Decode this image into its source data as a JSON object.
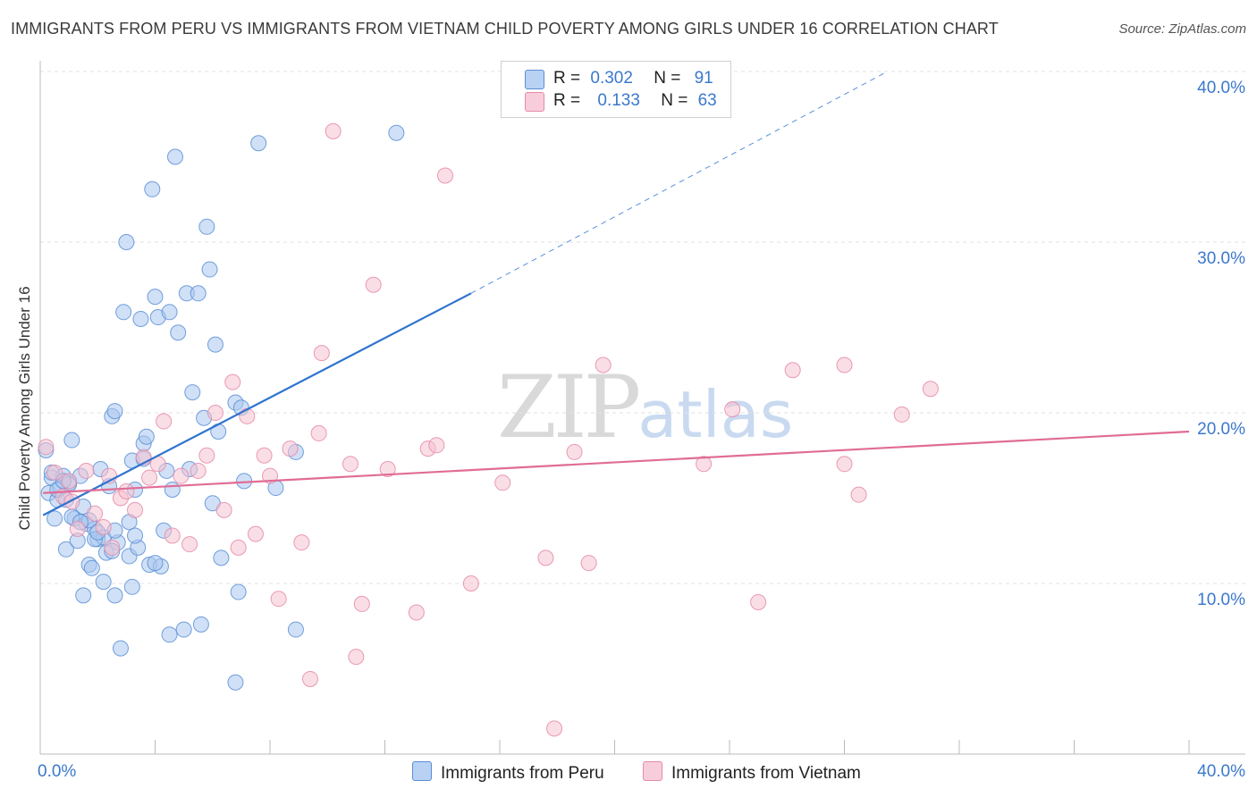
{
  "title": "IMMIGRANTS FROM PERU VS IMMIGRANTS FROM VIETNAM CHILD POVERTY AMONG GIRLS UNDER 16 CORRELATION CHART",
  "source": "Source: ZipAtlas.com",
  "watermark": {
    "zip": "ZIP",
    "atlas": "atlas"
  },
  "legend": {
    "peru": {
      "r_label": "R =",
      "r_value": "0.302",
      "n_label": "N =",
      "n_value": "91"
    },
    "vietnam": {
      "r_label": "R =",
      "r_value": "0.133",
      "n_label": "N =",
      "n_value": "63"
    }
  },
  "bottom_legend": {
    "peru": "Immigrants from Peru",
    "vietnam": "Immigrants from Vietnam"
  },
  "colors": {
    "peru_fill": "#a9c6ef",
    "peru_stroke": "#5b8fd6",
    "peru_line": "#2f74cf",
    "vietnam_fill": "#f6c2d2",
    "vietnam_stroke": "#e58aa8",
    "vietnam_line": "#e06c95",
    "axis_text": "#3a78cc",
    "grid": "#e2e2e2"
  },
  "chart_data": {
    "type": "scatter",
    "title": "IMMIGRANTS FROM PERU VS IMMIGRANTS FROM VIETNAM CHILD POVERTY AMONG GIRLS UNDER 16 CORRELATION CHART",
    "xlabel": "",
    "ylabel": "Child Poverty Among Girls Under 16",
    "xlim": [
      0,
      40
    ],
    "ylim": [
      0,
      40
    ],
    "x_tick_labels": [
      {
        "value": 0,
        "label": "0.0%"
      },
      {
        "value": 40,
        "label": "40.0%"
      }
    ],
    "y_tick_labels": [
      {
        "value": 10,
        "label": "10.0%"
      },
      {
        "value": 20,
        "label": "20.0%"
      },
      {
        "value": 30,
        "label": "30.0%"
      },
      {
        "value": 40,
        "label": "40.0%"
      }
    ],
    "grid": true,
    "series": [
      {
        "name": "Immigrants from Peru",
        "color": "#5b8fd6",
        "r": 0.302,
        "n": 91,
        "trend": {
          "x0": 0.1,
          "y0": 14.0,
          "x1": 15.0,
          "y1": 27.0,
          "dash_to_x": 29.5,
          "dash_to_y": 40.0
        },
        "points": [
          [
            0.2,
            17.8
          ],
          [
            0.3,
            15.3
          ],
          [
            0.4,
            16.2
          ],
          [
            0.5,
            13.8
          ],
          [
            0.6,
            14.9
          ],
          [
            0.7,
            15.6
          ],
          [
            0.8,
            16.3
          ],
          [
            0.9,
            12.0
          ],
          [
            1.0,
            15.9
          ],
          [
            1.1,
            18.4
          ],
          [
            1.2,
            13.8
          ],
          [
            1.3,
            12.5
          ],
          [
            1.4,
            16.3
          ],
          [
            1.5,
            14.5
          ],
          [
            1.6,
            13.5
          ],
          [
            1.7,
            11.1
          ],
          [
            1.8,
            10.9
          ],
          [
            1.9,
            13.2
          ],
          [
            2.0,
            12.6
          ],
          [
            2.1,
            16.7
          ],
          [
            2.2,
            10.1
          ],
          [
            2.3,
            11.8
          ],
          [
            2.4,
            15.7
          ],
          [
            2.5,
            19.8
          ],
          [
            2.6,
            20.1
          ],
          [
            2.7,
            12.4
          ],
          [
            2.8,
            6.2
          ],
          [
            2.9,
            25.9
          ],
          [
            3.0,
            30.0
          ],
          [
            3.1,
            11.6
          ],
          [
            3.2,
            9.8
          ],
          [
            3.3,
            15.5
          ],
          [
            3.4,
            12.1
          ],
          [
            3.5,
            25.5
          ],
          [
            3.6,
            18.2
          ],
          [
            3.7,
            18.6
          ],
          [
            3.8,
            11.1
          ],
          [
            3.9,
            33.1
          ],
          [
            4.0,
            26.8
          ],
          [
            4.1,
            25.6
          ],
          [
            4.2,
            11.0
          ],
          [
            4.3,
            13.1
          ],
          [
            4.4,
            16.6
          ],
          [
            4.5,
            25.9
          ],
          [
            4.6,
            15.5
          ],
          [
            4.7,
            35.0
          ],
          [
            4.8,
            24.7
          ],
          [
            5.0,
            7.3
          ],
          [
            5.1,
            27.0
          ],
          [
            5.2,
            16.7
          ],
          [
            5.3,
            21.2
          ],
          [
            5.5,
            27.0
          ],
          [
            5.6,
            7.6
          ],
          [
            5.7,
            19.7
          ],
          [
            5.8,
            30.9
          ],
          [
            5.9,
            28.4
          ],
          [
            6.0,
            14.7
          ],
          [
            6.1,
            24.0
          ],
          [
            6.2,
            18.9
          ],
          [
            6.3,
            11.5
          ],
          [
            6.8,
            20.6
          ],
          [
            6.9,
            9.5
          ],
          [
            7.0,
            20.3
          ],
          [
            7.1,
            16.0
          ],
          [
            7.6,
            35.8
          ],
          [
            8.2,
            15.6
          ],
          [
            8.9,
            17.7
          ],
          [
            8.9,
            7.3
          ],
          [
            12.4,
            36.4
          ],
          [
            6.8,
            4.2
          ],
          [
            4.5,
            7.0
          ],
          [
            1.5,
            9.3
          ],
          [
            1.0,
            15.8
          ],
          [
            0.6,
            15.5
          ],
          [
            1.1,
            13.9
          ],
          [
            2.6,
            9.3
          ],
          [
            3.2,
            17.2
          ],
          [
            4.0,
            11.2
          ],
          [
            2.5,
            11.9
          ],
          [
            3.1,
            13.6
          ],
          [
            2.2,
            12.7
          ],
          [
            0.9,
            14.9
          ],
          [
            1.9,
            12.6
          ],
          [
            3.6,
            17.3
          ],
          [
            0.4,
            16.5
          ],
          [
            1.7,
            13.7
          ],
          [
            2.6,
            13.1
          ],
          [
            1.4,
            13.6
          ],
          [
            0.8,
            16.0
          ],
          [
            2.0,
            13.0
          ],
          [
            3.3,
            12.8
          ]
        ]
      },
      {
        "name": "Immigrants from Vietnam",
        "color": "#e58aa8",
        "r": 0.133,
        "n": 63,
        "trend": {
          "x0": 0.1,
          "y0": 15.3,
          "x1": 40.0,
          "y1": 18.9
        },
        "points": [
          [
            0.2,
            18.0
          ],
          [
            0.5,
            16.5
          ],
          [
            0.8,
            15.1
          ],
          [
            1.0,
            16.0
          ],
          [
            1.3,
            13.2
          ],
          [
            1.6,
            16.6
          ],
          [
            1.9,
            14.1
          ],
          [
            2.2,
            13.3
          ],
          [
            2.5,
            12.1
          ],
          [
            2.8,
            15.0
          ],
          [
            3.0,
            15.4
          ],
          [
            3.3,
            14.3
          ],
          [
            3.6,
            17.4
          ],
          [
            3.8,
            16.2
          ],
          [
            4.1,
            17.0
          ],
          [
            4.3,
            19.5
          ],
          [
            4.6,
            12.8
          ],
          [
            4.9,
            16.3
          ],
          [
            5.2,
            12.3
          ],
          [
            5.5,
            16.6
          ],
          [
            5.8,
            17.5
          ],
          [
            6.1,
            20.0
          ],
          [
            6.4,
            14.3
          ],
          [
            6.7,
            21.8
          ],
          [
            6.9,
            12.1
          ],
          [
            7.2,
            19.8
          ],
          [
            7.5,
            12.9
          ],
          [
            7.8,
            17.5
          ],
          [
            8.0,
            16.3
          ],
          [
            8.3,
            9.1
          ],
          [
            8.7,
            17.9
          ],
          [
            9.1,
            12.4
          ],
          [
            9.4,
            4.4
          ],
          [
            9.7,
            18.8
          ],
          [
            9.8,
            23.5
          ],
          [
            10.2,
            36.5
          ],
          [
            10.8,
            17.0
          ],
          [
            11.0,
            5.7
          ],
          [
            11.2,
            8.8
          ],
          [
            11.6,
            27.5
          ],
          [
            12.1,
            16.7
          ],
          [
            13.1,
            8.3
          ],
          [
            13.5,
            17.9
          ],
          [
            13.8,
            18.1
          ],
          [
            14.1,
            33.9
          ],
          [
            15.0,
            10.0
          ],
          [
            16.1,
            15.9
          ],
          [
            17.6,
            11.5
          ],
          [
            17.9,
            1.5
          ],
          [
            18.6,
            17.7
          ],
          [
            19.1,
            11.2
          ],
          [
            19.6,
            22.8
          ],
          [
            23.1,
            17.0
          ],
          [
            24.1,
            20.2
          ],
          [
            25.0,
            8.9
          ],
          [
            26.2,
            22.5
          ],
          [
            28.0,
            22.8
          ],
          [
            28.0,
            17.0
          ],
          [
            28.5,
            15.2
          ],
          [
            30.0,
            19.9
          ],
          [
            31.0,
            21.4
          ],
          [
            2.4,
            16.3
          ],
          [
            1.1,
            14.8
          ]
        ]
      }
    ]
  }
}
